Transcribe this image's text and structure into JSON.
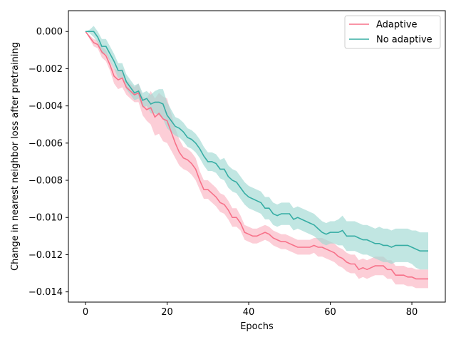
{
  "chart_data": {
    "type": "line",
    "title": "",
    "xlabel": "Epochs",
    "ylabel": "Change in nearest neighbor loss after pretraining",
    "xlim": [
      -4.2,
      88.2
    ],
    "ylim": [
      -0.01455,
      0.00112
    ],
    "xticks": [
      0,
      20,
      40,
      60,
      80
    ],
    "yticks": [
      0.0,
      -0.002,
      -0.004,
      -0.006,
      -0.008,
      -0.01,
      -0.012,
      -0.014
    ],
    "ytick_labels": [
      "0.000",
      "−0.002",
      "−0.004",
      "−0.006",
      "−0.008",
      "−0.010",
      "−0.012",
      "−0.014"
    ],
    "grid": false,
    "legend_position": "top-right",
    "series": [
      {
        "name": "Adaptive",
        "color": "#f77189",
        "band_color": "#fbb4c2",
        "points": [
          [
            0,
            0.0
          ],
          [
            1,
            -0.0003
          ],
          [
            2,
            -0.0006
          ],
          [
            3,
            -0.0007
          ],
          [
            4,
            -0.0011
          ],
          [
            5,
            -0.0013
          ],
          [
            6,
            -0.0018
          ],
          [
            7,
            -0.0024
          ],
          [
            8,
            -0.0026
          ],
          [
            9,
            -0.0025
          ],
          [
            10,
            -0.003
          ],
          [
            11,
            -0.0032
          ],
          [
            12,
            -0.0034
          ],
          [
            13,
            -0.0033
          ],
          [
            14,
            -0.004
          ],
          [
            15,
            -0.0042
          ],
          [
            16,
            -0.0041
          ],
          [
            17,
            -0.0046
          ],
          [
            18,
            -0.0044
          ],
          [
            19,
            -0.0047
          ],
          [
            20,
            -0.0048
          ],
          [
            21,
            -0.0054
          ],
          [
            22,
            -0.006
          ],
          [
            23,
            -0.0065
          ],
          [
            24,
            -0.0068
          ],
          [
            25,
            -0.0069
          ],
          [
            26,
            -0.0071
          ],
          [
            27,
            -0.0074
          ],
          [
            28,
            -0.008
          ],
          [
            29,
            -0.0085
          ],
          [
            30,
            -0.0085
          ],
          [
            31,
            -0.0087
          ],
          [
            32,
            -0.0089
          ],
          [
            33,
            -0.0092
          ],
          [
            34,
            -0.0093
          ],
          [
            35,
            -0.0096
          ],
          [
            36,
            -0.01
          ],
          [
            37,
            -0.01
          ],
          [
            38,
            -0.0103
          ],
          [
            39,
            -0.0108
          ],
          [
            40,
            -0.0109
          ],
          [
            41,
            -0.011
          ],
          [
            42,
            -0.011
          ],
          [
            43,
            -0.0109
          ],
          [
            44,
            -0.0108
          ],
          [
            45,
            -0.0109
          ],
          [
            46,
            -0.0111
          ],
          [
            47,
            -0.0112
          ],
          [
            48,
            -0.0113
          ],
          [
            49,
            -0.0113
          ],
          [
            50,
            -0.0114
          ],
          [
            51,
            -0.0115
          ],
          [
            52,
            -0.0116
          ],
          [
            53,
            -0.0116
          ],
          [
            54,
            -0.0116
          ],
          [
            55,
            -0.0116
          ],
          [
            56,
            -0.0115
          ],
          [
            57,
            -0.0116
          ],
          [
            58,
            -0.0116
          ],
          [
            59,
            -0.0117
          ],
          [
            60,
            -0.0118
          ],
          [
            61,
            -0.0119
          ],
          [
            62,
            -0.0121
          ],
          [
            63,
            -0.0122
          ],
          [
            64,
            -0.0124
          ],
          [
            65,
            -0.0125
          ],
          [
            66,
            -0.0125
          ],
          [
            67,
            -0.0128
          ],
          [
            68,
            -0.0127
          ],
          [
            69,
            -0.0128
          ],
          [
            70,
            -0.0127
          ],
          [
            71,
            -0.0126
          ],
          [
            72,
            -0.0126
          ],
          [
            73,
            -0.0126
          ],
          [
            74,
            -0.0128
          ],
          [
            75,
            -0.0128
          ],
          [
            76,
            -0.0131
          ],
          [
            77,
            -0.0131
          ],
          [
            78,
            -0.0131
          ],
          [
            79,
            -0.0132
          ],
          [
            80,
            -0.0132
          ],
          [
            81,
            -0.0133
          ],
          [
            82,
            -0.0133
          ],
          [
            83,
            -0.0133
          ],
          [
            84,
            -0.0133
          ]
        ],
        "band_halfwidth": [
          0,
          0.0001,
          0.0002,
          0.0002,
          0.0003,
          0.0003,
          0.0003,
          0.0004,
          0.0005,
          0.0005,
          0.0004,
          0.0004,
          0.0004,
          0.0005,
          0.0005,
          0.0006,
          0.0009,
          0.001,
          0.0011,
          0.0012,
          0.0012,
          0.001,
          0.0008,
          0.0007,
          0.0006,
          0.0006,
          0.0006,
          0.0006,
          0.0005,
          0.0005,
          0.0005,
          0.0005,
          0.0005,
          0.0005,
          0.0005,
          0.0005,
          0.0005,
          0.0005,
          0.0004,
          0.0004,
          0.0004,
          0.0004,
          0.0004,
          0.0004,
          0.0004,
          0.0004,
          0.0004,
          0.0004,
          0.0004,
          0.0004,
          0.0004,
          0.0004,
          0.0004,
          0.0004,
          0.0004,
          0.0004,
          0.0004,
          0.0005,
          0.0005,
          0.0005,
          0.0005,
          0.0005,
          0.0005,
          0.0005,
          0.0005,
          0.0005,
          0.0005,
          0.0005,
          0.0005,
          0.0005,
          0.0005,
          0.0005,
          0.0005,
          0.0005,
          0.0005,
          0.0005,
          0.0005,
          0.0005,
          0.0005,
          0.0005,
          0.0005,
          0.0005,
          0.0005,
          0.0005,
          0.0005
        ]
      },
      {
        "name": "No adaptive",
        "color": "#36ada4",
        "band_color": "#9fd8d3",
        "points": [
          [
            0,
            0.0
          ],
          [
            1,
            0.0
          ],
          [
            2,
            0.0
          ],
          [
            3,
            -0.0003
          ],
          [
            4,
            -0.0008
          ],
          [
            5,
            -0.0008
          ],
          [
            6,
            -0.0012
          ],
          [
            7,
            -0.0016
          ],
          [
            8,
            -0.0021
          ],
          [
            9,
            -0.0021
          ],
          [
            10,
            -0.0027
          ],
          [
            11,
            -0.003
          ],
          [
            12,
            -0.0033
          ],
          [
            13,
            -0.0032
          ],
          [
            14,
            -0.0037
          ],
          [
            15,
            -0.0036
          ],
          [
            16,
            -0.0039
          ],
          [
            17,
            -0.0038
          ],
          [
            18,
            -0.0038
          ],
          [
            19,
            -0.0039
          ],
          [
            20,
            -0.0045
          ],
          [
            21,
            -0.0048
          ],
          [
            22,
            -0.0051
          ],
          [
            23,
            -0.0052
          ],
          [
            24,
            -0.0054
          ],
          [
            25,
            -0.0057
          ],
          [
            26,
            -0.0058
          ],
          [
            27,
            -0.006
          ],
          [
            28,
            -0.0063
          ],
          [
            29,
            -0.0067
          ],
          [
            30,
            -0.007
          ],
          [
            31,
            -0.007
          ],
          [
            32,
            -0.0071
          ],
          [
            33,
            -0.0074
          ],
          [
            34,
            -0.0074
          ],
          [
            35,
            -0.0078
          ],
          [
            36,
            -0.008
          ],
          [
            37,
            -0.0081
          ],
          [
            38,
            -0.0084
          ],
          [
            39,
            -0.0087
          ],
          [
            40,
            -0.0089
          ],
          [
            41,
            -0.009
          ],
          [
            42,
            -0.0091
          ],
          [
            43,
            -0.0092
          ],
          [
            44,
            -0.0095
          ],
          [
            45,
            -0.0095
          ],
          [
            46,
            -0.0098
          ],
          [
            47,
            -0.0099
          ],
          [
            48,
            -0.0098
          ],
          [
            49,
            -0.0098
          ],
          [
            50,
            -0.0098
          ],
          [
            51,
            -0.0101
          ],
          [
            52,
            -0.01
          ],
          [
            53,
            -0.0101
          ],
          [
            54,
            -0.0102
          ],
          [
            55,
            -0.0103
          ],
          [
            56,
            -0.0104
          ],
          [
            57,
            -0.0106
          ],
          [
            58,
            -0.0108
          ],
          [
            59,
            -0.0109
          ],
          [
            60,
            -0.0108
          ],
          [
            61,
            -0.0108
          ],
          [
            62,
            -0.0108
          ],
          [
            63,
            -0.0107
          ],
          [
            64,
            -0.011
          ],
          [
            65,
            -0.011
          ],
          [
            66,
            -0.011
          ],
          [
            67,
            -0.0111
          ],
          [
            68,
            -0.0112
          ],
          [
            69,
            -0.0112
          ],
          [
            70,
            -0.0113
          ],
          [
            71,
            -0.0114
          ],
          [
            72,
            -0.0114
          ],
          [
            73,
            -0.0115
          ],
          [
            74,
            -0.0115
          ],
          [
            75,
            -0.0116
          ],
          [
            76,
            -0.0115
          ],
          [
            77,
            -0.0115
          ],
          [
            78,
            -0.0115
          ],
          [
            79,
            -0.0115
          ],
          [
            80,
            -0.0116
          ],
          [
            81,
            -0.0117
          ],
          [
            82,
            -0.0118
          ],
          [
            83,
            -0.0118
          ],
          [
            84,
            -0.0118
          ]
        ],
        "band_halfwidth": [
          0,
          0.0001,
          0.0003,
          0.0003,
          0.0004,
          0.0004,
          0.0004,
          0.0004,
          0.0004,
          0.0004,
          0.0004,
          0.0004,
          0.0004,
          0.0004,
          0.0004,
          0.0004,
          0.0005,
          0.0006,
          0.0007,
          0.0008,
          0.0007,
          0.0006,
          0.0005,
          0.0005,
          0.0005,
          0.0005,
          0.0005,
          0.0005,
          0.0005,
          0.0005,
          0.0005,
          0.0005,
          0.0005,
          0.0005,
          0.0006,
          0.0006,
          0.0006,
          0.0006,
          0.0006,
          0.0006,
          0.0006,
          0.0006,
          0.0006,
          0.0006,
          0.0006,
          0.0006,
          0.0006,
          0.0006,
          0.0006,
          0.0006,
          0.0006,
          0.0006,
          0.0006,
          0.0006,
          0.0006,
          0.0006,
          0.0006,
          0.0006,
          0.0006,
          0.0006,
          0.0006,
          0.0006,
          0.0007,
          0.0008,
          0.0008,
          0.0008,
          0.0008,
          0.0008,
          0.0008,
          0.0008,
          0.0008,
          0.0008,
          0.0009,
          0.0009,
          0.0009,
          0.0009,
          0.0009,
          0.0009,
          0.0009,
          0.0009,
          0.0009,
          0.001,
          0.001,
          0.001,
          0.001
        ]
      }
    ]
  }
}
